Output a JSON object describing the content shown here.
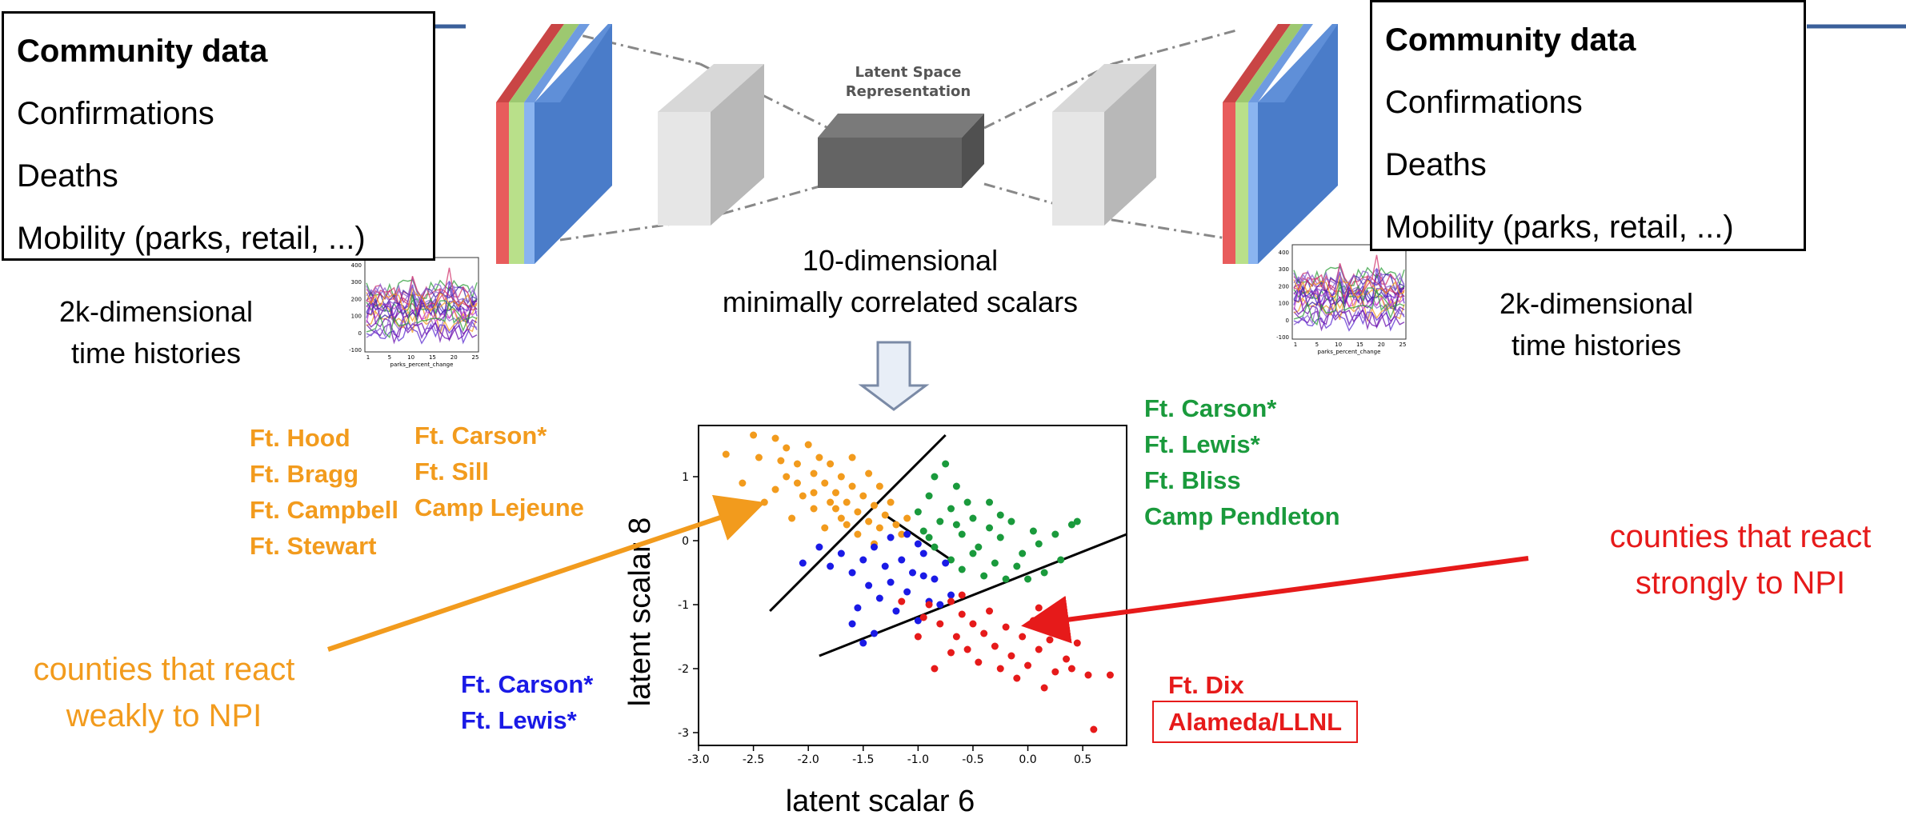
{
  "input_box": {
    "title": "Community data",
    "items": [
      "Confirmations",
      "Deaths",
      "Mobility (parks, retail, ...)"
    ]
  },
  "output_box": {
    "title": "Community data",
    "items": [
      "Confirmations",
      "Deaths",
      "Mobility (parks, retail, ...)"
    ]
  },
  "input_caption": [
    "2k-dimensional",
    "time histories"
  ],
  "output_caption": [
    "2k-dimensional",
    "time histories"
  ],
  "latent_label": [
    "Latent Space",
    "Representation"
  ],
  "latent_caption": [
    "10-dimensional",
    "minimally correlated scalars"
  ],
  "thumbnail": {
    "yticks": [
      "400",
      "300",
      "200",
      "100",
      "0",
      "-100"
    ],
    "xticks": [
      "1",
      "5",
      "10",
      "15",
      "20",
      "25"
    ],
    "xlabel": "parks_percent_change"
  },
  "groups": {
    "orange_col1": [
      "Ft. Hood",
      "Ft. Bragg",
      "Ft. Campbell",
      "Ft. Stewart"
    ],
    "orange_col2": [
      "Ft. Carson*",
      "Ft. Sill",
      "Camp Lejeune"
    ],
    "green": [
      "Ft. Carson*",
      "Ft. Lewis*",
      "Ft. Bliss",
      "Camp Pendleton"
    ],
    "blue": [
      "Ft. Carson*",
      "Ft. Lewis*"
    ],
    "red": [
      "Ft. Dix"
    ],
    "red_boxed": "Alameda/LLNL"
  },
  "annotations": {
    "weak": [
      "counties that react",
      "weakly to NPI"
    ],
    "strong": [
      "counties that react",
      "strongly to NPI"
    ]
  },
  "colors": {
    "orange": "#f29b1d",
    "green": "#1a9a3c",
    "blue": "#1a1ae6",
    "red": "#e61a1a",
    "layer_red": "#e85c5c",
    "layer_green": "#b9e08a",
    "layer_blue": "#4a7cc9"
  },
  "chart_data": {
    "type": "scatter",
    "xlabel": "latent scalar 6",
    "ylabel": "latent scalar 8",
    "xlim": [
      -3.0,
      0.9
    ],
    "ylim": [
      -3.2,
      1.8
    ],
    "xticks": [
      "-3.0",
      "-2.5",
      "-2.0",
      "-1.5",
      "-1.0",
      "-0.5",
      "0.0",
      "0.5"
    ],
    "xtick_values": [
      -3.0,
      -2.5,
      -2.0,
      -1.5,
      -1.0,
      -0.5,
      0.0,
      0.5
    ],
    "yticks": [
      "1",
      "0",
      "-1",
      "-2",
      "-3"
    ],
    "ytick_values": [
      1,
      0,
      -1,
      -2,
      -3
    ],
    "grid": false,
    "lines": [
      {
        "x": [
          -2.35,
          -0.75
        ],
        "y": [
          -1.1,
          1.65
        ]
      },
      {
        "x": [
          -1.9,
          0.9
        ],
        "y": [
          -1.8,
          0.1
        ]
      },
      {
        "x": [
          -1.3,
          -0.7
        ],
        "y": [
          0.4,
          -0.3
        ]
      }
    ],
    "series": [
      {
        "color": "orange",
        "points": [
          [
            -2.5,
            1.65
          ],
          [
            -2.3,
            1.6
          ],
          [
            -2.2,
            1.45
          ],
          [
            -2.45,
            1.3
          ],
          [
            -2.1,
            1.2
          ],
          [
            -2.0,
            1.5
          ],
          [
            -1.9,
            1.3
          ],
          [
            -2.2,
            1.0
          ],
          [
            -2.3,
            0.8
          ],
          [
            -2.05,
            0.7
          ],
          [
            -1.95,
            1.05
          ],
          [
            -1.85,
            0.9
          ],
          [
            -1.8,
            1.2
          ],
          [
            -1.75,
            0.75
          ],
          [
            -1.7,
            1.0
          ],
          [
            -1.65,
            0.6
          ],
          [
            -1.6,
            0.85
          ],
          [
            -1.55,
            0.45
          ],
          [
            -1.5,
            0.7
          ],
          [
            -1.45,
            0.3
          ],
          [
            -1.4,
            0.55
          ],
          [
            -1.35,
            0.2
          ],
          [
            -1.3,
            0.4
          ],
          [
            -1.25,
            0.6
          ],
          [
            -1.2,
            0.25
          ],
          [
            -1.15,
            0.1
          ],
          [
            -1.1,
            0.35
          ],
          [
            -2.75,
            1.35
          ],
          [
            -2.4,
            0.6
          ],
          [
            -2.6,
            0.9
          ],
          [
            -2.15,
            0.35
          ],
          [
            -1.95,
            0.5
          ],
          [
            -1.85,
            0.2
          ],
          [
            -1.7,
            0.35
          ],
          [
            -1.6,
            1.3
          ],
          [
            -1.45,
            1.05
          ],
          [
            -1.35,
            0.85
          ],
          [
            -1.55,
            0.1
          ],
          [
            -1.4,
            -0.05
          ],
          [
            -2.25,
            1.25
          ],
          [
            -2.1,
            0.9
          ],
          [
            -1.75,
            0.5
          ],
          [
            -1.65,
            0.25
          ],
          [
            -1.95,
            0.75
          ],
          [
            -1.8,
            0.6
          ]
        ]
      },
      {
        "color": "green",
        "points": [
          [
            -1.0,
            0.45
          ],
          [
            -0.9,
            0.7
          ],
          [
            -0.8,
            0.3
          ],
          [
            -0.7,
            0.5
          ],
          [
            -0.6,
            0.1
          ],
          [
            -0.5,
            0.35
          ],
          [
            -0.45,
            -0.1
          ],
          [
            -0.35,
            0.2
          ],
          [
            -0.25,
            0.05
          ],
          [
            -0.15,
            0.3
          ],
          [
            -0.05,
            -0.2
          ],
          [
            0.1,
            -0.05
          ],
          [
            0.25,
            0.1
          ],
          [
            0.45,
            0.3
          ],
          [
            -0.85,
            1.0
          ],
          [
            -0.75,
            1.2
          ],
          [
            -0.65,
            0.85
          ],
          [
            -0.55,
            0.6
          ],
          [
            -0.95,
            0.15
          ],
          [
            -0.85,
            -0.1
          ],
          [
            -0.7,
            -0.3
          ],
          [
            -0.6,
            -0.45
          ],
          [
            -0.5,
            -0.2
          ],
          [
            -0.4,
            -0.55
          ],
          [
            -0.3,
            -0.35
          ],
          [
            -0.2,
            -0.6
          ],
          [
            -0.1,
            -0.4
          ],
          [
            0.0,
            -0.6
          ],
          [
            0.15,
            -0.5
          ],
          [
            0.3,
            -0.3
          ],
          [
            -0.35,
            0.6
          ],
          [
            -0.25,
            0.4
          ],
          [
            0.05,
            0.15
          ],
          [
            0.4,
            0.25
          ],
          [
            -0.9,
            0.05
          ],
          [
            -0.65,
            0.25
          ]
        ]
      },
      {
        "color": "blue",
        "points": [
          [
            -1.8,
            -0.4
          ],
          [
            -1.7,
            -0.2
          ],
          [
            -1.6,
            -0.5
          ],
          [
            -1.5,
            -0.3
          ],
          [
            -1.45,
            -0.7
          ],
          [
            -1.4,
            -0.1
          ],
          [
            -1.35,
            -0.9
          ],
          [
            -1.3,
            -0.4
          ],
          [
            -1.25,
            -0.65
          ],
          [
            -1.2,
            -1.1
          ],
          [
            -1.15,
            -0.3
          ],
          [
            -1.1,
            -0.8
          ],
          [
            -1.05,
            -0.5
          ],
          [
            -1.0,
            -1.25
          ],
          [
            -0.95,
            -0.2
          ],
          [
            -0.9,
            -0.95
          ],
          [
            -0.85,
            -0.6
          ],
          [
            -0.8,
            -1.0
          ],
          [
            -0.75,
            -0.35
          ],
          [
            -0.7,
            -0.85
          ],
          [
            -1.55,
            -1.05
          ],
          [
            -1.6,
            -1.3
          ],
          [
            -1.4,
            -1.45
          ],
          [
            -1.5,
            -1.6
          ],
          [
            -2.05,
            -0.35
          ],
          [
            -1.9,
            -0.1
          ],
          [
            -1.25,
            0.05
          ],
          [
            -1.1,
            0.1
          ],
          [
            -0.95,
            -0.55
          ],
          [
            -1.0,
            -0.05
          ]
        ]
      },
      {
        "color": "red",
        "points": [
          [
            -0.9,
            -1.0
          ],
          [
            -0.8,
            -1.3
          ],
          [
            -0.7,
            -0.95
          ],
          [
            -0.65,
            -1.5
          ],
          [
            -0.6,
            -1.15
          ],
          [
            -0.55,
            -1.7
          ],
          [
            -0.5,
            -1.3
          ],
          [
            -0.45,
            -1.9
          ],
          [
            -0.4,
            -1.45
          ],
          [
            -0.35,
            -1.1
          ],
          [
            -0.3,
            -1.65
          ],
          [
            -0.25,
            -2.0
          ],
          [
            -0.2,
            -1.35
          ],
          [
            -0.15,
            -1.8
          ],
          [
            -0.1,
            -2.15
          ],
          [
            -0.05,
            -1.5
          ],
          [
            0.0,
            -1.95
          ],
          [
            0.05,
            -1.25
          ],
          [
            0.1,
            -1.7
          ],
          [
            0.15,
            -2.3
          ],
          [
            0.2,
            -1.55
          ],
          [
            0.25,
            -2.05
          ],
          [
            0.3,
            -1.35
          ],
          [
            0.35,
            -1.85
          ],
          [
            0.45,
            -1.6
          ],
          [
            0.55,
            -2.1
          ],
          [
            0.75,
            -2.1
          ],
          [
            0.6,
            -2.95
          ],
          [
            -1.0,
            -1.5
          ],
          [
            -0.85,
            -2.0
          ],
          [
            -0.7,
            -1.75
          ],
          [
            -1.15,
            -0.95
          ],
          [
            -0.95,
            -1.2
          ],
          [
            0.4,
            -2.0
          ],
          [
            0.1,
            -1.05
          ],
          [
            -0.6,
            -0.85
          ]
        ]
      }
    ]
  }
}
